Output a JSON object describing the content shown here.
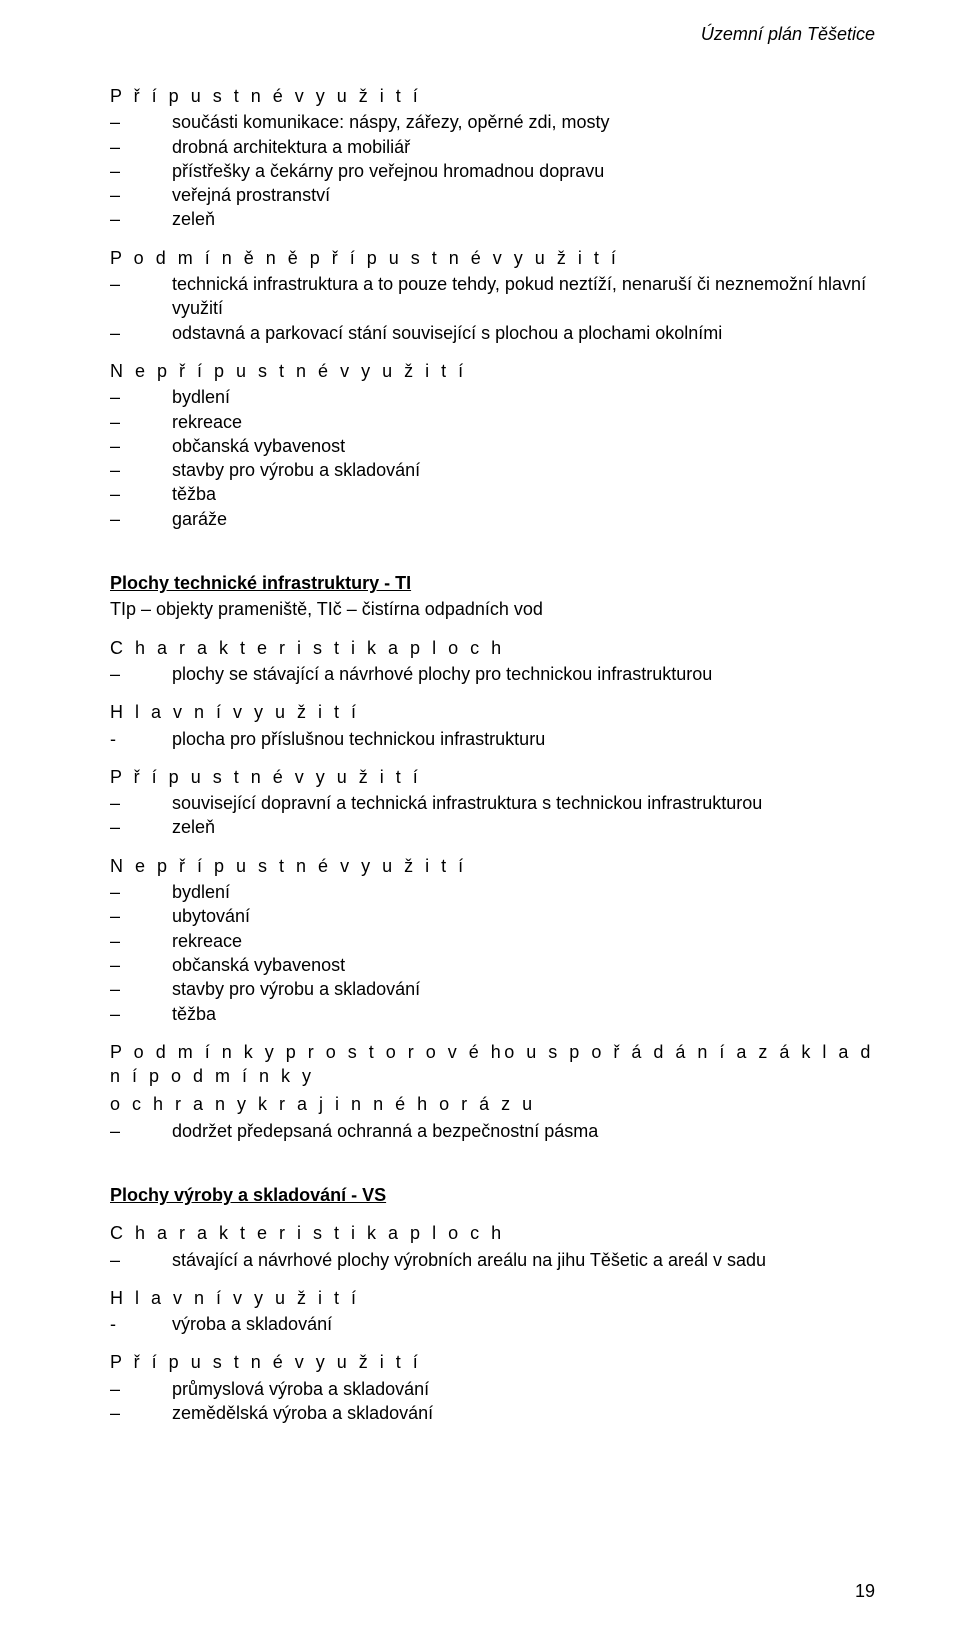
{
  "header": {
    "doc_title": "Územní plán Těšetice"
  },
  "section1": {
    "h_pripustne": "P ř í p u s t n é  v y u ž i t í",
    "pripustne": [
      "součásti komunikace: náspy, zářezy, opěrné zdi, mosty",
      "drobná architektura a mobiliář",
      "přístřešky a čekárny pro veřejnou hromadnou dopravu",
      "veřejná prostranství",
      "zeleň"
    ],
    "h_podm": "P o d m í n ě n ě  p ř í p u s t n é  v y u ž i t í",
    "podm": [
      "technická infrastruktura a to pouze tehdy, pokud neztíží, nenaruší či neznemožní hlavní využití",
      "odstavná a parkovací stání související s plochou a plochami okolními"
    ],
    "h_nepr": "N e p ř í p u s t n é  v y u ž i t í",
    "nepr": [
      "bydlení",
      "rekreace",
      "občanská vybavenost",
      "stavby pro výrobu a skladování",
      "těžba",
      "garáže"
    ]
  },
  "section2": {
    "title": "Plochy technické infrastruktury - TI",
    "subtitle": "TIp – objekty prameniště, TIč – čistírna odpadních vod",
    "h_charakt": "C h a r a k t e r i s t i k a  p l o c h",
    "charakt": [
      "plochy se stávající a návrhové plochy pro technickou infrastrukturou"
    ],
    "h_hlavni": "H l a v n í  v y u ž i t í",
    "hlavni": [
      "plocha pro příslušnou technickou infrastrukturu"
    ],
    "h_pripustne": "P ř í p u s t n é  v y u ž i t í",
    "pripustne": [
      "související dopravní a technická infrastruktura s technickou infrastrukturou",
      "zeleň"
    ],
    "h_nepr": "N e p ř í p u s t n é  v y u ž i t í",
    "nepr": [
      "bydlení",
      "ubytování",
      "rekreace",
      "občanská vybavenost",
      "stavby pro výrobu a skladování",
      "těžba"
    ],
    "h_podm_prost_1": "P o d m í n k y  p r o s t o r o v é ho  u s p o ř á d á n í  a  z á k l a d n í  p o d m í n k y",
    "h_podm_prost_2": "o c h r a n y  k r a j i n n é h o  r á z u",
    "podm_prost": [
      "dodržet předepsaná ochranná a bezpečnostní pásma"
    ]
  },
  "section3": {
    "title": "Plochy výroby a skladování  - VS",
    "h_charakt": "C h a r a k t e r i s t i k a  p l o c h",
    "charakt": [
      "stávající a návrhové plochy výrobních areálu na jihu Těšetic a areál v sadu"
    ],
    "h_hlavni": "H l a v n í  v y u ž i t í",
    "hlavni": [
      "výroba a skladování"
    ],
    "h_pripustne": "P ř í p u s t n é  v y u ž i t í",
    "pripustne": [
      "průmyslová výroba a skladování",
      "zemědělská výroba a skladování"
    ]
  },
  "page_number": "19"
}
